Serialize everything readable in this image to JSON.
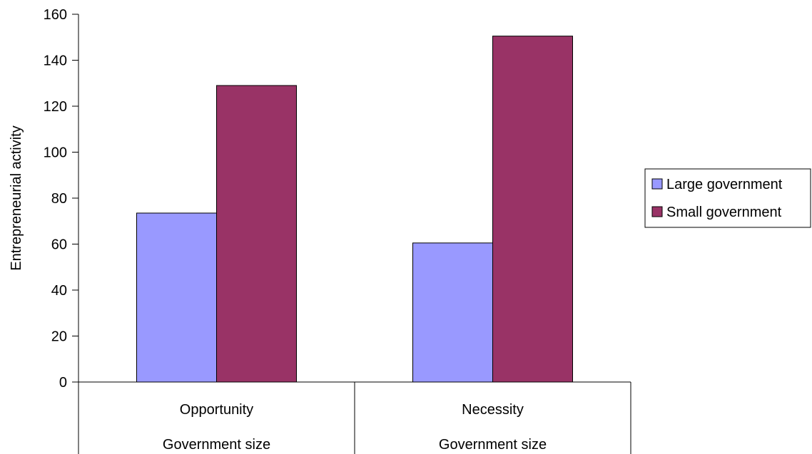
{
  "chart_data": {
    "type": "bar",
    "categories": [
      "Opportunity",
      "Necessity"
    ],
    "group_labels": [
      "Government size",
      "Government size"
    ],
    "series": [
      {
        "name": "Large government",
        "values": [
          73.5,
          60.5
        ],
        "color": "#9999ff"
      },
      {
        "name": "Small government",
        "values": [
          129,
          150.5
        ],
        "color": "#993366"
      }
    ],
    "xlabel": "",
    "ylabel": "Entrepreneurial activity",
    "ylim": [
      0,
      160
    ],
    "yticks": [
      0,
      20,
      40,
      60,
      80,
      100,
      120,
      140,
      160
    ],
    "grid": false,
    "legend_position": "right"
  }
}
